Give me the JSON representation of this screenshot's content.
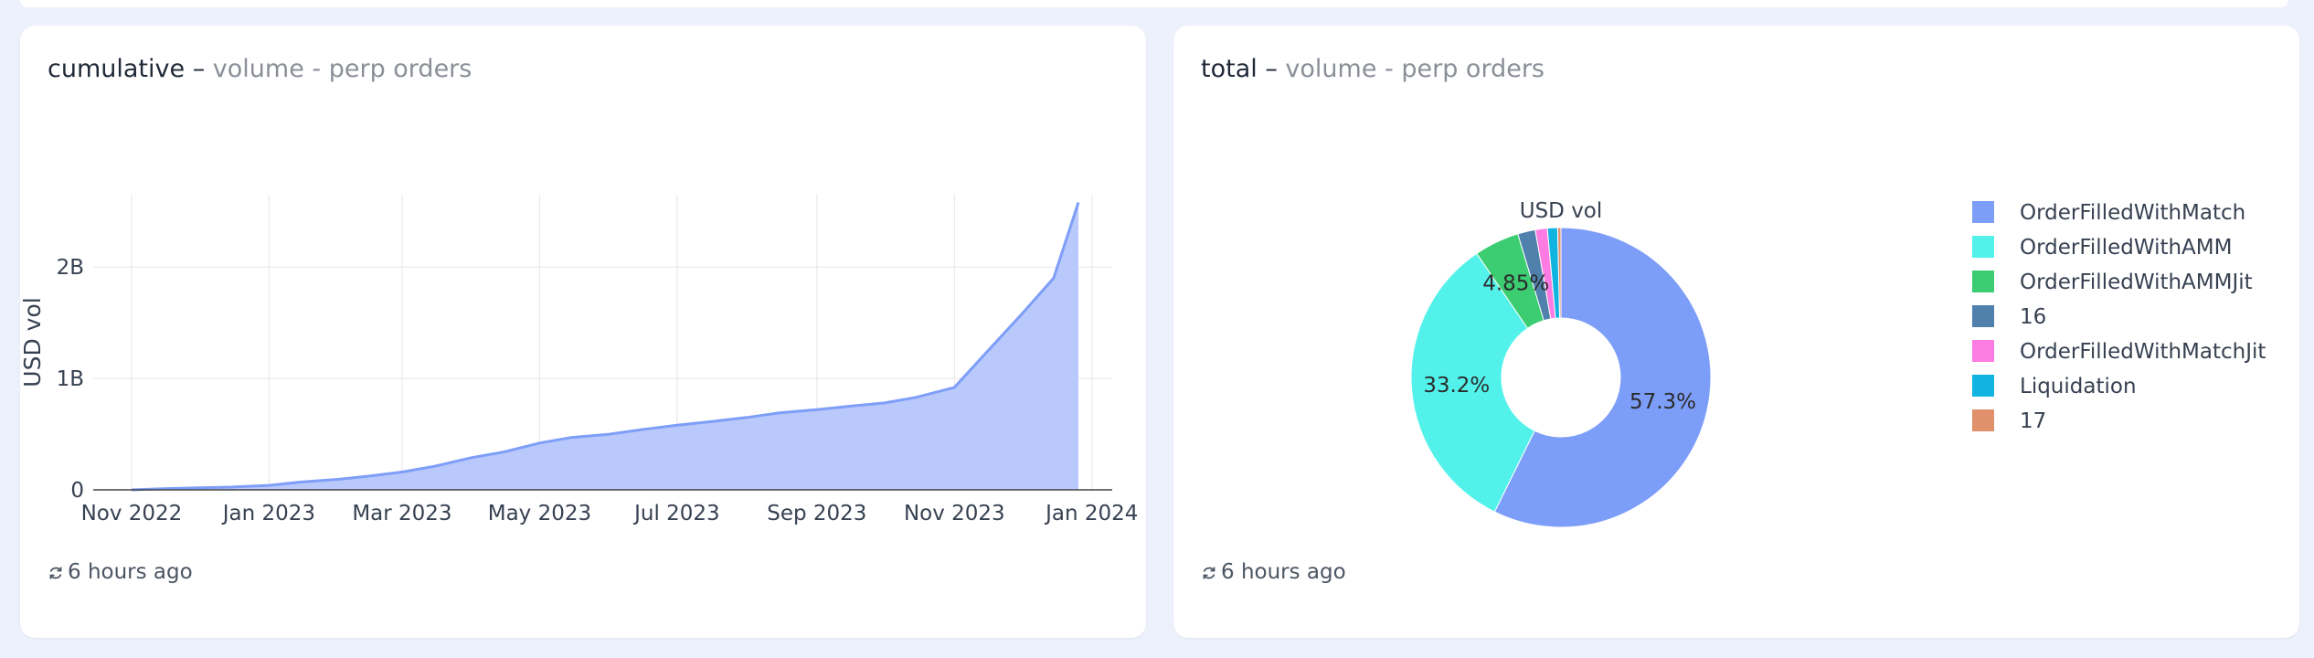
{
  "cards": [
    {
      "title_metric": "cumulative",
      "title_sep": " – ",
      "title_sub": "volume - perp orders",
      "footer_text": "6 hours ago",
      "refresh_icon": "refresh-icon"
    },
    {
      "title_metric": "total",
      "title_sep": " – ",
      "title_sub": "volume - perp orders",
      "footer_text": "6 hours ago",
      "refresh_icon": "refresh-icon"
    }
  ],
  "chart_data": [
    {
      "type": "area",
      "title": "",
      "xlabel": "",
      "ylabel": "USD vol",
      "x_ticks": [
        "Nov 2022",
        "Jan 2023",
        "Mar 2023",
        "May 2023",
        "Jul 2023",
        "Sep 2023",
        "Nov 2023",
        "Jan 2024"
      ],
      "y_ticks": [
        "0",
        "1B",
        "2B"
      ],
      "ylim": [
        0,
        2650000000
      ],
      "xlim": [
        "2022-10-15",
        "2024-01-10"
      ],
      "grid": true,
      "fill_color": "#bac9fc",
      "line_color": "#7e9ef8",
      "series": [
        {
          "x": [
            "2022-11-01",
            "2022-11-15",
            "2022-12-01",
            "2022-12-15",
            "2023-01-01",
            "2023-01-15",
            "2023-02-01",
            "2023-02-15",
            "2023-03-01",
            "2023-03-15",
            "2023-04-01",
            "2023-04-15",
            "2023-05-01",
            "2023-05-15",
            "2023-06-01",
            "2023-06-15",
            "2023-07-01",
            "2023-07-15",
            "2023-08-01",
            "2023-08-15",
            "2023-09-01",
            "2023-09-15",
            "2023-10-01",
            "2023-10-15",
            "2023-11-01",
            "2023-11-15",
            "2023-12-01",
            "2023-12-15",
            "2023-12-26"
          ],
          "y": [
            0,
            10000000,
            18000000,
            25000000,
            40000000,
            70000000,
            95000000,
            125000000,
            160000000,
            210000000,
            290000000,
            340000000,
            420000000,
            470000000,
            500000000,
            540000000,
            580000000,
            610000000,
            650000000,
            690000000,
            720000000,
            750000000,
            780000000,
            830000000,
            920000000,
            1230000000,
            1580000000,
            1900000000,
            2580000000
          ]
        }
      ]
    },
    {
      "type": "pie",
      "title": "USD vol",
      "hole": true,
      "legend_position": "right",
      "slices": [
        {
          "label": "OrderFilledWithMatch",
          "value": 57.3,
          "color": "#7d9ef8",
          "text": "57.3%"
        },
        {
          "label": "OrderFilledWithAMM",
          "value": 33.2,
          "color": "#52f2eb",
          "text": "33.2%"
        },
        {
          "label": "OrderFilledWithAMMJit",
          "value": 4.85,
          "color": "#3ccd72",
          "text": "4.85%"
        },
        {
          "label": "16",
          "value": 1.9,
          "color": "#5081ad",
          "text": ""
        },
        {
          "label": "OrderFilledWithMatchJit",
          "value": 1.3,
          "color": "#fc7ce3",
          "text": ""
        },
        {
          "label": "Liquidation",
          "value": 1.1,
          "color": "#11b3e0",
          "text": ""
        },
        {
          "label": "17",
          "value": 0.35,
          "color": "#e0906a",
          "text": ""
        }
      ]
    }
  ]
}
